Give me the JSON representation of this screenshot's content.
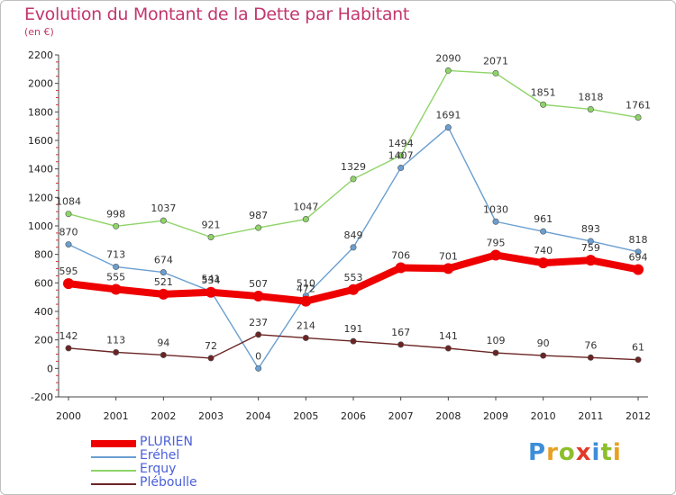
{
  "title": "Evolution du Montant de la Dette par Habitant",
  "subtitle": "(en €)",
  "brand": {
    "letters": [
      {
        "ch": "P",
        "color": "#3d8ed8"
      },
      {
        "ch": "r",
        "color": "#e8a020"
      },
      {
        "ch": "o",
        "color": "#8cbf2a"
      },
      {
        "ch": "x",
        "color": "#e23a2a"
      },
      {
        "ch": "i",
        "color": "#3d8ed8"
      },
      {
        "ch": "t",
        "color": "#8cbf2a"
      },
      {
        "ch": "i",
        "color": "#e8a020"
      }
    ]
  },
  "chart_data": {
    "type": "line",
    "title": "Evolution du Montant de la Dette par Habitant",
    "subtitle": "(en €)",
    "x": [
      2000,
      2001,
      2002,
      2003,
      2004,
      2005,
      2006,
      2007,
      2008,
      2009,
      2010,
      2011,
      2012
    ],
    "ylim": [
      -200,
      2200
    ],
    "yticks": [
      -200,
      0,
      200,
      400,
      600,
      800,
      1000,
      1200,
      1400,
      1600,
      1800,
      2000,
      2200
    ],
    "grid": false,
    "legend_position": "bottom-left",
    "series": [
      {
        "name": "PLURIEN",
        "color": "#ee0000",
        "width": 8,
        "values": [
          595,
          555,
          521,
          534,
          507,
          472,
          553,
          706,
          701,
          795,
          740,
          759,
          694
        ]
      },
      {
        "name": "Eréhel",
        "color": "#6a9fd0",
        "width": 1.4,
        "values": [
          870,
          713,
          674,
          541,
          0,
          510,
          849,
          1407,
          1691,
          1030,
          961,
          893,
          818
        ]
      },
      {
        "name": "Erquy",
        "color": "#8ed468",
        "width": 1.4,
        "values": [
          1084,
          998,
          1037,
          921,
          987,
          1047,
          1329,
          1494,
          2090,
          2071,
          1851,
          1818,
          1761
        ]
      },
      {
        "name": "Pléboulle",
        "color": "#6b2424",
        "width": 1.4,
        "values": [
          142,
          113,
          94,
          72,
          237,
          214,
          191,
          167,
          141,
          109,
          90,
          76,
          61
        ]
      }
    ]
  }
}
